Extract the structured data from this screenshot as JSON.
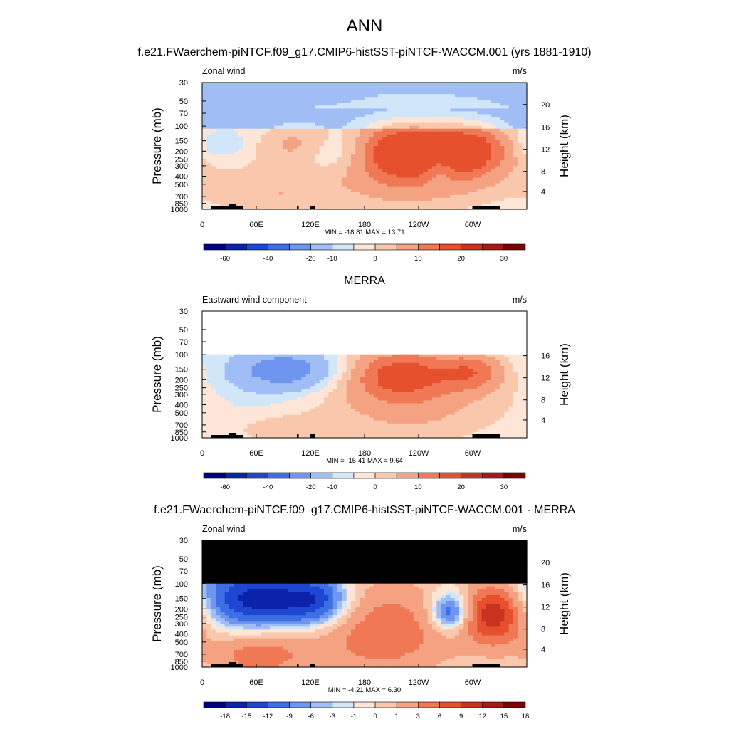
{
  "page_title": "ANN",
  "colors": {
    "model_diverging": [
      "#00007f",
      "#0a23aa",
      "#1e46d2",
      "#3c6ee6",
      "#6e96f0",
      "#a0bef5",
      "#d2e6fa",
      "#fde6d7",
      "#f9c8ac",
      "#f4a282",
      "#f07855",
      "#e6502d",
      "#c8321e",
      "#a51a14",
      "#7f0000"
    ],
    "diff_diverging": [
      "#00007f",
      "#0a23aa",
      "#1e46d2",
      "#3c6ee6",
      "#6e96f0",
      "#a0bef5",
      "#d2e6fa",
      "#fde6d7",
      "#f9c8ac",
      "#f4a282",
      "#f07855",
      "#e6502d",
      "#c8321e",
      "#a51a14",
      "#7f0000"
    ],
    "missing": "#ffffff",
    "masked": "#000000"
  },
  "chart_data": [
    {
      "type": "heatmap",
      "title": "f.e21.FWaerchem-piNTCF.f09_g17.CMIP6-histSST-piNTCF-WACCM.001 (yrs 1881-1910)",
      "left_label": "Zonal wind",
      "right_label": "m/s",
      "ylabel": "Pressure (mb)",
      "ylabel2": "Height (km)",
      "x_ticks": [
        "0",
        "60E",
        "120E",
        "180",
        "120W",
        "60W"
      ],
      "y_ticks": [
        "30",
        "50",
        "70",
        "100",
        "150",
        "200",
        "250",
        "300",
        "400",
        "500",
        "700",
        "850",
        "1000"
      ],
      "y2_ticks": [
        "20",
        "16",
        "12",
        "8",
        "4"
      ],
      "min_max": "MIN = -18.81  MAX =  13.71",
      "colorbar_labels": [
        "-60",
        "-40",
        "-20",
        "-10",
        "0",
        "10",
        "20",
        "30"
      ],
      "top_missing_mb": null,
      "masked_top": false,
      "features": [
        {
          "lon": 115,
          "lev": 170,
          "amp": 8,
          "w": 35,
          "h": 0.18
        },
        {
          "lon": 150,
          "lev": 190,
          "amp": -10,
          "w": 40,
          "h": 0.18
        },
        {
          "lon": 215,
          "lev": 190,
          "amp": 12,
          "w": 45,
          "h": 0.2
        },
        {
          "lon": 300,
          "lev": 190,
          "amp": 9,
          "w": 30,
          "h": 0.2
        },
        {
          "lon": 235,
          "lev": 300,
          "amp": 6,
          "w": 60,
          "h": 0.35
        },
        {
          "lon": 262,
          "lev": 300,
          "amp": -4,
          "w": 12,
          "h": 0.15
        },
        {
          "lon": 20,
          "lev": 170,
          "amp": -3,
          "w": 20,
          "h": 0.1
        },
        {
          "lon": 80,
          "lev": 720,
          "amp": 3,
          "w": 50,
          "h": 0.2
        }
      ],
      "base": "strat_easterly",
      "orography": true
    },
    {
      "type": "heatmap",
      "title": "MERRA",
      "left_label": "Eastward wind component",
      "right_label": "m/s",
      "ylabel": "Pressure (mb)",
      "ylabel2": "Height (km)",
      "x_ticks": [
        "0",
        "60E",
        "120E",
        "180",
        "120W",
        "60W"
      ],
      "y_ticks": [
        "30",
        "50",
        "70",
        "100",
        "150",
        "200",
        "250",
        "300",
        "400",
        "500",
        "700",
        "850",
        "1000"
      ],
      "y2_ticks": [
        "16",
        "12",
        "8",
        "4"
      ],
      "min_max": "MIN = -15.41  MAX =   9.64",
      "colorbar_labels": [
        "-60",
        "-40",
        "-20",
        "-10",
        "0",
        "10",
        "20",
        "30"
      ],
      "top_missing_mb": 100,
      "masked_top": false,
      "features": [
        {
          "lon": 95,
          "lev": 155,
          "amp": -9,
          "w": 40,
          "h": 0.15
        },
        {
          "lon": 220,
          "lev": 170,
          "amp": 9,
          "w": 40,
          "h": 0.2
        },
        {
          "lon": 300,
          "lev": 160,
          "amp": 7,
          "w": 25,
          "h": 0.15
        },
        {
          "lon": 230,
          "lev": 350,
          "amp": 4,
          "w": 70,
          "h": 0.4
        },
        {
          "lon": 80,
          "lev": 800,
          "amp": 3,
          "w": 40,
          "h": 0.15
        }
      ],
      "base": "troposphere",
      "orography": true
    },
    {
      "type": "heatmap",
      "title": "f.e21.FWaerchem-piNTCF.f09_g17.CMIP6-histSST-piNTCF-WACCM.001 - MERRA",
      "left_label": "Zonal wind",
      "right_label": "m/s",
      "ylabel": "Pressure (mb)",
      "ylabel2": "Height (km)",
      "x_ticks": [
        "0",
        "60E",
        "120E",
        "180",
        "120W",
        "60W"
      ],
      "y_ticks": [
        "30",
        "50",
        "70",
        "100",
        "150",
        "200",
        "250",
        "300",
        "400",
        "500",
        "700",
        "850",
        "1000"
      ],
      "y2_ticks": [
        "20",
        "16",
        "12",
        "8",
        "4"
      ],
      "min_max": "MIN =  -4.21  MAX =   6.30",
      "colorbar_labels": [
        "-18",
        "-15",
        "-12",
        "-9",
        "-6",
        "-3",
        "-1",
        "0",
        "1",
        "3",
        "6",
        "9",
        "12",
        "15",
        "18"
      ],
      "top_missing_mb": 100,
      "masked_top": true,
      "features": [
        {
          "lon": 60,
          "lev": 150,
          "amp": -3.5,
          "w": 45,
          "h": 0.25
        },
        {
          "lon": 130,
          "lev": 160,
          "amp": -3,
          "w": 25,
          "h": 0.2
        },
        {
          "lon": 275,
          "lev": 220,
          "amp": -3.8,
          "w": 15,
          "h": 0.15
        },
        {
          "lon": 325,
          "lev": 220,
          "amp": 4.5,
          "w": 25,
          "h": 0.25
        },
        {
          "lon": 200,
          "lev": 350,
          "amp": 2.5,
          "w": 60,
          "h": 0.5
        },
        {
          "lon": 60,
          "lev": 750,
          "amp": 2.5,
          "w": 40,
          "h": 0.2
        }
      ],
      "base": "diff",
      "orography": true
    }
  ]
}
